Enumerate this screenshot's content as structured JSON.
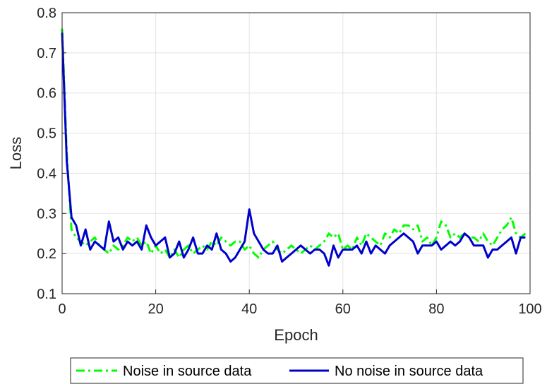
{
  "chart_data": {
    "type": "line",
    "title": "",
    "xlabel": "Epoch",
    "ylabel": "Loss",
    "xlim": [
      0,
      100
    ],
    "ylim": [
      0.1,
      0.8
    ],
    "xticks": [
      "0",
      "20",
      "40",
      "60",
      "80",
      "100"
    ],
    "yticks": [
      "0.1",
      "0.2",
      "0.3",
      "0.4",
      "0.5",
      "0.6",
      "0.7",
      "0.8"
    ],
    "grid": true,
    "legend_position": "bottom, outside",
    "series": [
      {
        "name": "Noise in source data",
        "color": "#00ff00",
        "style": "dash-dot",
        "x": [
          0,
          1,
          2,
          3,
          4,
          5,
          6,
          7,
          8,
          9,
          10,
          11,
          12,
          13,
          14,
          15,
          16,
          17,
          18,
          19,
          20,
          21,
          22,
          23,
          24,
          25,
          26,
          27,
          28,
          29,
          30,
          31,
          32,
          33,
          34,
          35,
          36,
          37,
          38,
          39,
          40,
          41,
          42,
          43,
          44,
          45,
          46,
          47,
          48,
          49,
          50,
          51,
          52,
          53,
          54,
          55,
          56,
          57,
          58,
          59,
          60,
          61,
          62,
          63,
          64,
          65,
          66,
          67,
          68,
          69,
          70,
          71,
          72,
          73,
          74,
          75,
          76,
          77,
          78,
          79,
          80,
          81,
          82,
          83,
          84,
          85,
          86,
          87,
          88,
          89,
          90,
          91,
          92,
          93,
          94,
          95,
          96,
          97,
          98,
          99
        ],
        "values": [
          0.76,
          0.45,
          0.26,
          0.24,
          0.23,
          0.22,
          0.23,
          0.24,
          0.22,
          0.21,
          0.2,
          0.22,
          0.21,
          0.22,
          0.24,
          0.23,
          0.24,
          0.22,
          0.23,
          0.2,
          0.22,
          0.2,
          0.21,
          0.19,
          0.21,
          0.19,
          0.21,
          0.22,
          0.2,
          0.21,
          0.22,
          0.21,
          0.23,
          0.22,
          0.24,
          0.23,
          0.22,
          0.23,
          0.23,
          0.21,
          0.22,
          0.2,
          0.19,
          0.21,
          0.22,
          0.23,
          0.21,
          0.2,
          0.21,
          0.22,
          0.21,
          0.2,
          0.21,
          0.22,
          0.21,
          0.22,
          0.23,
          0.25,
          0.24,
          0.25,
          0.21,
          0.22,
          0.21,
          0.24,
          0.22,
          0.25,
          0.24,
          0.23,
          0.22,
          0.25,
          0.24,
          0.26,
          0.25,
          0.27,
          0.27,
          0.26,
          0.27,
          0.23,
          0.24,
          0.22,
          0.24,
          0.28,
          0.27,
          0.24,
          0.25,
          0.24,
          0.25,
          0.24,
          0.24,
          0.23,
          0.25,
          0.23,
          0.22,
          0.24,
          0.26,
          0.27,
          0.29,
          0.25,
          0.24,
          0.25
        ]
      },
      {
        "name": "No noise in source data",
        "color": "#0000cc",
        "style": "solid",
        "x": [
          0,
          1,
          2,
          3,
          4,
          5,
          6,
          7,
          8,
          9,
          10,
          11,
          12,
          13,
          14,
          15,
          16,
          17,
          18,
          19,
          20,
          21,
          22,
          23,
          24,
          25,
          26,
          27,
          28,
          29,
          30,
          31,
          32,
          33,
          34,
          35,
          36,
          37,
          38,
          39,
          40,
          41,
          42,
          43,
          44,
          45,
          46,
          47,
          48,
          49,
          50,
          51,
          52,
          53,
          54,
          55,
          56,
          57,
          58,
          59,
          60,
          61,
          62,
          63,
          64,
          65,
          66,
          67,
          68,
          69,
          70,
          71,
          72,
          73,
          74,
          75,
          76,
          77,
          78,
          79,
          80,
          81,
          82,
          83,
          84,
          85,
          86,
          87,
          88,
          89,
          90,
          91,
          92,
          93,
          94,
          95,
          96,
          97,
          98,
          99
        ],
        "values": [
          0.75,
          0.43,
          0.29,
          0.27,
          0.22,
          0.26,
          0.21,
          0.23,
          0.22,
          0.21,
          0.28,
          0.23,
          0.24,
          0.21,
          0.23,
          0.22,
          0.23,
          0.21,
          0.27,
          0.24,
          0.22,
          0.23,
          0.24,
          0.19,
          0.2,
          0.23,
          0.19,
          0.21,
          0.24,
          0.2,
          0.2,
          0.22,
          0.21,
          0.25,
          0.21,
          0.2,
          0.18,
          0.19,
          0.21,
          0.23,
          0.31,
          0.25,
          0.23,
          0.21,
          0.2,
          0.2,
          0.22,
          0.18,
          0.19,
          0.2,
          0.21,
          0.22,
          0.21,
          0.2,
          0.21,
          0.21,
          0.2,
          0.17,
          0.22,
          0.19,
          0.21,
          0.21,
          0.21,
          0.22,
          0.2,
          0.23,
          0.2,
          0.22,
          0.21,
          0.2,
          0.22,
          0.23,
          0.24,
          0.25,
          0.24,
          0.23,
          0.2,
          0.22,
          0.22,
          0.22,
          0.23,
          0.21,
          0.22,
          0.23,
          0.22,
          0.23,
          0.25,
          0.24,
          0.22,
          0.22,
          0.22,
          0.19,
          0.21,
          0.21,
          0.22,
          0.23,
          0.24,
          0.2,
          0.24,
          0.24
        ]
      }
    ]
  }
}
